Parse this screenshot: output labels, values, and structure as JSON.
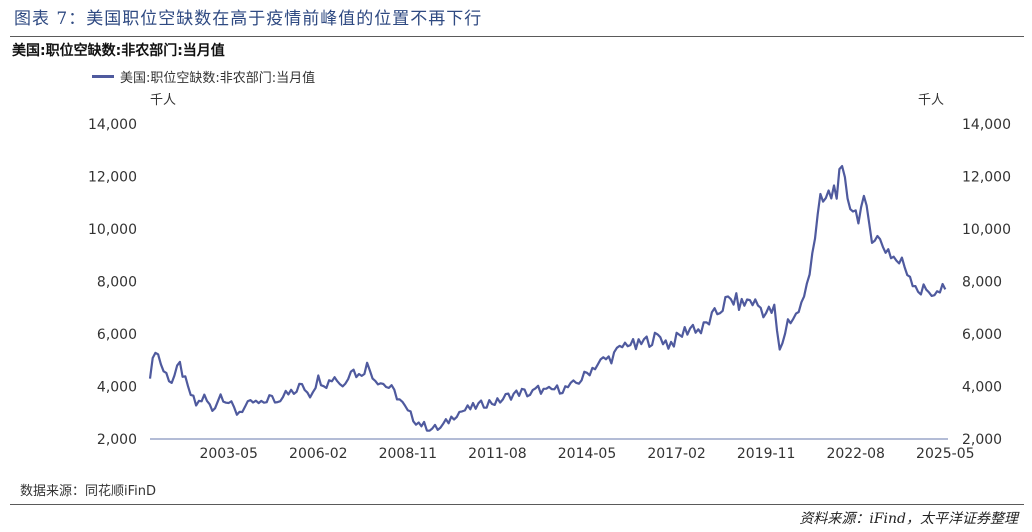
{
  "figure_title": "图表 7：美国职位空缺数在高于疫情前峰值的位置不再下行",
  "source_left": "数据来源：同花顺iFinD",
  "source_right": "资料来源：iFind，太平洋证券整理",
  "chart_data": {
    "type": "line",
    "title": "美国:职位空缺数:非农部门:当月值",
    "unit_left": "千人",
    "unit_right": "千人",
    "ylim": [
      2000,
      14000
    ],
    "yticks": [
      "2,000",
      "4,000",
      "6,000",
      "8,000",
      "10,000",
      "12,000",
      "14,000"
    ],
    "xtick_labels": [
      "2003-05",
      "2006-02",
      "2008-11",
      "2011-08",
      "2014-05",
      "2017-02",
      "2019-11",
      "2022-08",
      "2025-05"
    ],
    "legend_position": "top-left",
    "grid": false,
    "series": [
      {
        "name": "美国:职位空缺数:非农部门:当月值",
        "color": "#4f5a9e",
        "points": [
          [
            "2000-12",
            4300
          ],
          [
            "2001-02",
            5500
          ],
          [
            "2001-05",
            4600
          ],
          [
            "2001-08",
            4200
          ],
          [
            "2001-11",
            4800
          ],
          [
            "2002-02",
            3900
          ],
          [
            "2002-05",
            3300
          ],
          [
            "2002-08",
            3600
          ],
          [
            "2002-11",
            3100
          ],
          [
            "2003-02",
            3700
          ],
          [
            "2003-05",
            3400
          ],
          [
            "2003-08",
            3000
          ],
          [
            "2003-11",
            3200
          ],
          [
            "2004-02",
            3400
          ],
          [
            "2004-05",
            3300
          ],
          [
            "2004-08",
            3600
          ],
          [
            "2004-11",
            3400
          ],
          [
            "2005-02",
            3900
          ],
          [
            "2005-05",
            3700
          ],
          [
            "2005-08",
            4100
          ],
          [
            "2005-11",
            3700
          ],
          [
            "2006-02",
            4300
          ],
          [
            "2006-05",
            4100
          ],
          [
            "2006-08",
            4400
          ],
          [
            "2006-11",
            4000
          ],
          [
            "2007-02",
            4700
          ],
          [
            "2007-05",
            4400
          ],
          [
            "2007-08",
            4800
          ],
          [
            "2007-11",
            4300
          ],
          [
            "2008-02",
            4100
          ],
          [
            "2008-05",
            3900
          ],
          [
            "2008-08",
            3500
          ],
          [
            "2008-11",
            3000
          ],
          [
            "2009-02",
            2700
          ],
          [
            "2009-05",
            2500
          ],
          [
            "2009-08",
            2400
          ],
          [
            "2009-11",
            2400
          ],
          [
            "2010-02",
            2700
          ],
          [
            "2010-05",
            3000
          ],
          [
            "2010-08",
            3100
          ],
          [
            "2010-11",
            3200
          ],
          [
            "2011-02",
            3300
          ],
          [
            "2011-05",
            3400
          ],
          [
            "2011-08",
            3400
          ],
          [
            "2011-11",
            3600
          ],
          [
            "2012-02",
            3700
          ],
          [
            "2012-05",
            3800
          ],
          [
            "2012-08",
            3700
          ],
          [
            "2012-11",
            3900
          ],
          [
            "2013-02",
            3800
          ],
          [
            "2013-05",
            3900
          ],
          [
            "2013-08",
            3900
          ],
          [
            "2013-11",
            4000
          ],
          [
            "2014-02",
            4200
          ],
          [
            "2014-05",
            4500
          ],
          [
            "2014-08",
            4800
          ],
          [
            "2014-11",
            5000
          ],
          [
            "2015-02",
            5100
          ],
          [
            "2015-05",
            5400
          ],
          [
            "2015-08",
            5700
          ],
          [
            "2015-11",
            5500
          ],
          [
            "2016-02",
            5700
          ],
          [
            "2016-05",
            5800
          ],
          [
            "2016-08",
            5900
          ],
          [
            "2016-11",
            5600
          ],
          [
            "2017-02",
            5800
          ],
          [
            "2017-05",
            6100
          ],
          [
            "2017-08",
            6300
          ],
          [
            "2017-11",
            6100
          ],
          [
            "2018-02",
            6500
          ],
          [
            "2018-05",
            6800
          ],
          [
            "2018-08",
            7200
          ],
          [
            "2018-11",
            7300
          ],
          [
            "2019-02",
            7100
          ],
          [
            "2019-05",
            7300
          ],
          [
            "2019-08",
            7100
          ],
          [
            "2019-11",
            6800
          ],
          [
            "2020-02",
            6900
          ],
          [
            "2020-04",
            5300
          ],
          [
            "2020-07",
            6500
          ],
          [
            "2020-10",
            6700
          ],
          [
            "2021-01",
            7300
          ],
          [
            "2021-04",
            9200
          ],
          [
            "2021-07",
            10900
          ],
          [
            "2021-10",
            11200
          ],
          [
            "2021-12",
            11500
          ],
          [
            "2022-03",
            11900
          ],
          [
            "2022-05",
            11300
          ],
          [
            "2022-08",
            10600
          ],
          [
            "2022-11",
            10800
          ],
          [
            "2023-02",
            9900
          ],
          [
            "2023-05",
            9500
          ],
          [
            "2023-08",
            9200
          ],
          [
            "2023-11",
            8800
          ],
          [
            "2024-02",
            8600
          ],
          [
            "2024-05",
            8100
          ],
          [
            "2024-08",
            7600
          ],
          [
            "2024-11",
            7700
          ],
          [
            "2025-02",
            7500
          ],
          [
            "2025-05",
            7700
          ]
        ]
      }
    ]
  }
}
